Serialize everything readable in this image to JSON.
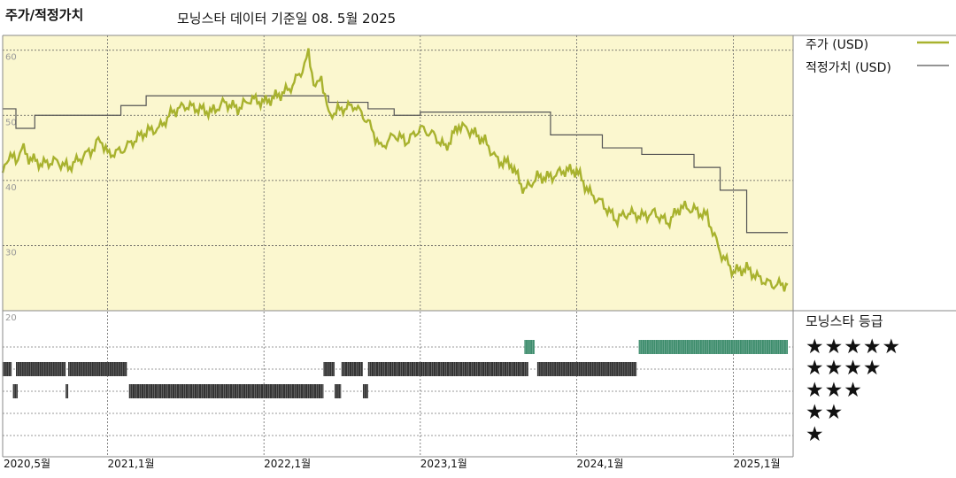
{
  "header": {
    "title": "주가/적정가치",
    "subtitle": "모닝스타 데이터 기준일 08. 5월 2025"
  },
  "legend": {
    "price_label": "주가 (USD)",
    "fair_value_label": "적정가치 (USD)"
  },
  "ratings_panel": {
    "title": "모닝스타 등급",
    "rows": [
      "★★★★★",
      "★★★★",
      "★★★",
      "★★",
      "★"
    ]
  },
  "colors": {
    "price": "#a8b22e",
    "fair_value": "#555555",
    "panel_bg": "#fbf7cf",
    "rating_5": "#3d8c6c",
    "rating_other": "#333333"
  },
  "chart_data": {
    "type": "line",
    "title": "주가/적정가치",
    "ylim": [
      20,
      62
    ],
    "yticks": [
      "60",
      "50",
      "40",
      "30",
      "20"
    ],
    "xticks": [
      "2020,5월",
      "2021,1월",
      "2022,1월",
      "2023,1월",
      "2024,1월",
      "2025,1월"
    ],
    "series": [
      {
        "name": "주가 (USD)",
        "points": [
          [
            "2020-05-01",
            41.0
          ],
          [
            "2020-05-15",
            44.0
          ],
          [
            "2020-06-01",
            43.0
          ],
          [
            "2020-06-15",
            45.0
          ],
          [
            "2020-07-01",
            43.5
          ],
          [
            "2020-08-01",
            42.5
          ],
          [
            "2020-09-01",
            43.0
          ],
          [
            "2020-10-01",
            42.0
          ],
          [
            "2020-11-01",
            43.5
          ],
          [
            "2020-12-01",
            45.0
          ],
          [
            "2020-12-15",
            46.5
          ],
          [
            "2021-01-01",
            44.0
          ],
          [
            "2021-02-01",
            44.5
          ],
          [
            "2021-03-01",
            46.0
          ],
          [
            "2021-04-01",
            47.5
          ],
          [
            "2021-05-01",
            48.0
          ],
          [
            "2021-06-01",
            50.5
          ],
          [
            "2021-07-01",
            51.5
          ],
          [
            "2021-08-01",
            51.0
          ],
          [
            "2021-09-01",
            50.5
          ],
          [
            "2021-10-01",
            52.0
          ],
          [
            "2021-11-01",
            51.0
          ],
          [
            "2021-12-01",
            52.5
          ],
          [
            "2022-01-01",
            52.0
          ],
          [
            "2022-02-01",
            53.0
          ],
          [
            "2022-03-01",
            54.0
          ],
          [
            "2022-04-01",
            57.0
          ],
          [
            "2022-04-15",
            59.5
          ],
          [
            "2022-05-01",
            54.0
          ],
          [
            "2022-05-15",
            56.0
          ],
          [
            "2022-06-01",
            50.0
          ],
          [
            "2022-07-01",
            51.0
          ],
          [
            "2022-08-01",
            51.5
          ],
          [
            "2022-09-01",
            49.0
          ],
          [
            "2022-10-01",
            45.0
          ],
          [
            "2022-11-01",
            47.0
          ],
          [
            "2022-12-01",
            46.0
          ],
          [
            "2023-01-01",
            48.0
          ],
          [
            "2023-02-01",
            47.0
          ],
          [
            "2023-03-01",
            45.0
          ],
          [
            "2023-04-01",
            48.5
          ],
          [
            "2023-05-01",
            47.5
          ],
          [
            "2023-06-01",
            46.0
          ],
          [
            "2023-07-01",
            43.0
          ],
          [
            "2023-08-01",
            42.5
          ],
          [
            "2023-09-01",
            38.5
          ],
          [
            "2023-10-01",
            40.5
          ],
          [
            "2023-11-01",
            40.5
          ],
          [
            "2023-12-01",
            41.5
          ],
          [
            "2024-01-01",
            41.5
          ],
          [
            "2024-02-01",
            38.0
          ],
          [
            "2024-03-01",
            36.5
          ],
          [
            "2024-04-01",
            34.0
          ],
          [
            "2024-05-01",
            35.0
          ],
          [
            "2024-06-01",
            34.5
          ],
          [
            "2024-07-01",
            35.0
          ],
          [
            "2024-08-01",
            33.5
          ],
          [
            "2024-09-01",
            36.0
          ],
          [
            "2024-10-01",
            35.5
          ],
          [
            "2024-11-01",
            34.5
          ],
          [
            "2024-12-01",
            29.0
          ],
          [
            "2025-01-01",
            26.0
          ],
          [
            "2025-02-01",
            26.5
          ],
          [
            "2025-03-01",
            25.0
          ],
          [
            "2025-04-01",
            24.0
          ],
          [
            "2025-05-08",
            24.0
          ]
        ]
      },
      {
        "name": "적정가치 (USD)",
        "steps": [
          [
            "2020-05-01",
            51.0
          ],
          [
            "2020-06-01",
            48.0
          ],
          [
            "2020-07-15",
            50.0
          ],
          [
            "2021-02-01",
            51.5
          ],
          [
            "2021-04-01",
            53.0
          ],
          [
            "2022-06-01",
            52.0
          ],
          [
            "2022-09-01",
            51.0
          ],
          [
            "2022-11-01",
            50.0
          ],
          [
            "2023-01-01",
            50.5
          ],
          [
            "2023-11-01",
            47.0
          ],
          [
            "2024-03-01",
            45.0
          ],
          [
            "2024-06-01",
            44.0
          ],
          [
            "2024-10-01",
            42.0
          ],
          [
            "2024-12-01",
            38.5
          ],
          [
            "2025-02-01",
            32.0
          ],
          [
            "2025-05-08",
            32.0
          ]
        ]
      }
    ],
    "ratings": [
      {
        "stars": 5,
        "periods": [
          [
            "2023-09-01",
            "2023-09-25"
          ],
          [
            "2024-05-25",
            "2025-05-08"
          ]
        ]
      },
      {
        "stars": 4,
        "periods": [
          [
            "2020-05-01",
            "2020-05-22"
          ],
          [
            "2020-06-01",
            "2020-09-25"
          ],
          [
            "2020-10-01",
            "2021-02-15"
          ],
          [
            "2022-05-20",
            "2022-06-15"
          ],
          [
            "2022-07-01",
            "2022-08-20"
          ],
          [
            "2022-09-01",
            "2023-09-10"
          ],
          [
            "2023-10-01",
            "2024-05-20"
          ]
        ]
      },
      {
        "stars": 3,
        "periods": [
          [
            "2020-05-25",
            "2020-06-05"
          ],
          [
            "2020-09-25",
            "2020-10-01"
          ],
          [
            "2021-02-20",
            "2022-05-20"
          ],
          [
            "2022-06-15",
            "2022-06-30"
          ],
          [
            "2022-08-20",
            "2022-09-01"
          ]
        ]
      },
      {
        "stars": 2,
        "periods": []
      },
      {
        "stars": 1,
        "periods": []
      }
    ]
  }
}
